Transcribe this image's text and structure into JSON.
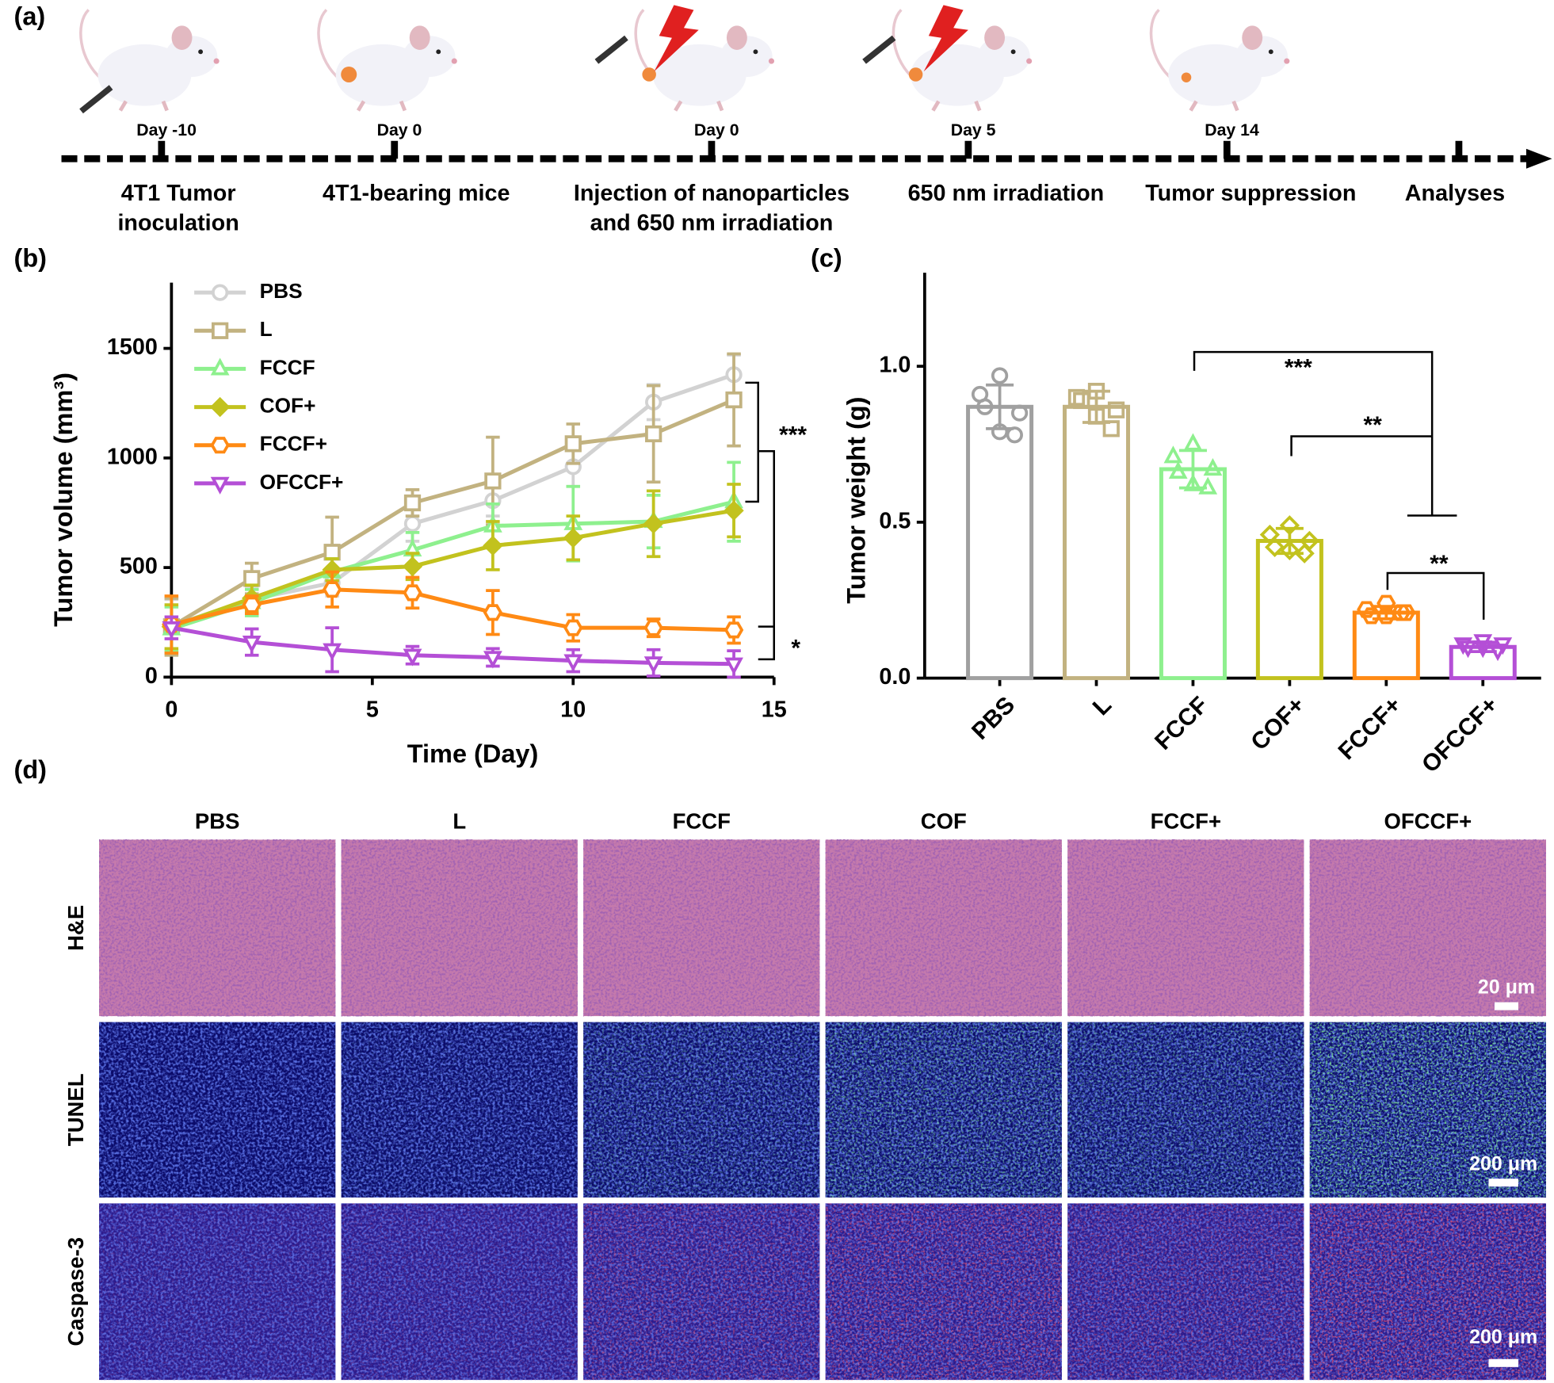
{
  "panel_labels": [
    "(a)",
    "(b)",
    "(c)",
    "(d)"
  ],
  "timeline": {
    "days": [
      "Day -10",
      "Day 0",
      "Day 0",
      "Day 5",
      "Day 14"
    ],
    "steps": [
      [
        "4T1 Tumor",
        "inoculation"
      ],
      [
        "4T1-bearing mice"
      ],
      [
        "Injection of nanoparticles",
        "and 650 nm irradiation"
      ],
      [
        "650 nm irradiation"
      ],
      [
        "Tumor suppression"
      ],
      [
        "Analyses"
      ]
    ]
  },
  "chart_data": [
    {
      "type": "line",
      "xlabel": "Time (Day)",
      "ylabel": "Tumor volume (mm³)",
      "x": [
        0,
        2,
        4,
        6,
        8,
        10,
        12,
        14
      ],
      "xlim": [
        0,
        15
      ],
      "xticks": [
        0,
        5,
        10,
        15
      ],
      "ylim": [
        0,
        1800
      ],
      "yticks": [
        0,
        500,
        1000,
        1500
      ],
      "series": [
        {
          "name": "PBS",
          "color": "#d2d2d2",
          "marker": "circle",
          "values": [
            235,
            355,
            430,
            700,
            805,
            960,
            1255,
            1380
          ],
          "errors": [
            120,
            60,
            60,
            80,
            70,
            90,
            80,
            90
          ]
        },
        {
          "name": "L",
          "color": "#c2b280",
          "marker": "square",
          "values": [
            230,
            450,
            570,
            795,
            895,
            1065,
            1110,
            1265
          ],
          "errors": [
            130,
            70,
            160,
            60,
            200,
            90,
            220,
            210
          ]
        },
        {
          "name": "FCCF",
          "color": "#8ef08e",
          "marker": "triangle",
          "values": [
            220,
            340,
            480,
            580,
            690,
            700,
            710,
            800
          ],
          "errors": [
            100,
            60,
            60,
            80,
            100,
            170,
            120,
            180
          ]
        },
        {
          "name": "COF+",
          "color": "#c2c21e",
          "marker": "diamond",
          "values": [
            230,
            360,
            490,
            505,
            600,
            635,
            700,
            760
          ],
          "errors": [
            100,
            60,
            50,
            60,
            110,
            100,
            150,
            120
          ]
        },
        {
          "name": "FCCF+",
          "color": "#ff8a14",
          "marker": "hexagon",
          "values": [
            240,
            330,
            400,
            385,
            295,
            225,
            225,
            215
          ],
          "errors": [
            130,
            40,
            80,
            70,
            100,
            60,
            40,
            60
          ]
        },
        {
          "name": "OFCCF+",
          "color": "#b44fd6",
          "marker": "triangle-down",
          "values": [
            225,
            160,
            125,
            100,
            90,
            75,
            65,
            60
          ],
          "errors": [
            50,
            60,
            100,
            40,
            40,
            50,
            60,
            60
          ]
        }
      ],
      "annotations": [
        "***",
        "*"
      ]
    },
    {
      "type": "bar",
      "ylabel": "Tumor weight (g)",
      "categories": [
        "PBS",
        "L",
        "FCCF",
        "COF+",
        "FCCF+",
        "OFCCF+"
      ],
      "values": [
        0.87,
        0.87,
        0.67,
        0.44,
        0.21,
        0.1
      ],
      "errors": [
        0.07,
        0.05,
        0.06,
        0.04,
        0.02,
        0.015
      ],
      "colors": [
        "#a0a0a0",
        "#c2b280",
        "#8ef08e",
        "#c2c21e",
        "#ff8a14",
        "#b44fd6"
      ],
      "points": [
        [
          0.97,
          0.91,
          0.85,
          0.87,
          0.78,
          0.79
        ],
        [
          0.92,
          0.9,
          0.86,
          0.89,
          0.8,
          0.84
        ],
        [
          0.75,
          0.71,
          0.67,
          0.66,
          0.61,
          0.62
        ],
        [
          0.49,
          0.46,
          0.44,
          0.42,
          0.4,
          0.41
        ],
        [
          0.24,
          0.22,
          0.21,
          0.2,
          0.21,
          0.2
        ],
        [
          0.12,
          0.11,
          0.11,
          0.1,
          0.09,
          0.1
        ]
      ],
      "ylim": [
        0,
        1.3
      ],
      "yticks": [
        {
          "value": 0,
          "label": "0.0"
        },
        0.5,
        {
          "value": 1,
          "label": "1.0"
        }
      ],
      "annotations": [
        "***",
        "**",
        "**"
      ]
    }
  ],
  "histology": {
    "columns": [
      "PBS",
      "L",
      "FCCF",
      "COF",
      "FCCF+",
      "OFCCF+"
    ],
    "rows": [
      "H&E",
      "TUNEL",
      "Caspase-3"
    ],
    "scale_bars": [
      "20 μm",
      "200 μm",
      "200 μm"
    ]
  }
}
